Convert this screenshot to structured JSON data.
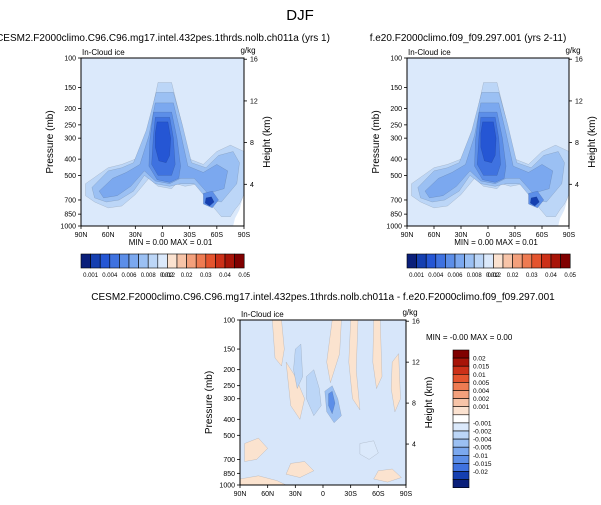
{
  "page_title": "DJF",
  "colors": {
    "blues": [
      "#0a1f7a",
      "#153fb0",
      "#2556d4",
      "#3f72e0",
      "#5c8ee8",
      "#7ba8ef",
      "#9bc0f3",
      "#bcd6f7",
      "#dbe9fb"
    ],
    "warms": [
      "#fbe2d0",
      "#f7c4a8",
      "#f3a07c",
      "#ee7b52",
      "#e4542e",
      "#cc3018",
      "#a81408",
      "#800000"
    ],
    "diff_pos": "#fbe3cf",
    "diff_neg": "#d7e6fa"
  },
  "chart_data": [
    {
      "id": "panel-left",
      "type": "contour",
      "title": "CESM2.F2000climo.C96.C96.mg17.intel.432pes.1thrds.nolb.ch011a (yrs 1)",
      "left_label": "In-Cloud ice",
      "right_label": "g/kg",
      "ylabel": "Pressure (mb)",
      "y2label": "Height (km)",
      "x_ticks": [
        "90N",
        "60N",
        "30N",
        "0",
        "30S",
        "60S",
        "90S"
      ],
      "x_range": [
        90,
        -90
      ],
      "y_ticks": [
        100,
        150,
        200,
        250,
        300,
        400,
        500,
        700,
        850,
        1000
      ],
      "y_range": [
        100,
        1000
      ],
      "y2_ticks": [
        16,
        12,
        8,
        4
      ],
      "stats": "MIN =  0.00   MAX =  0.01",
      "min": 0.0,
      "max": 0.01
    },
    {
      "id": "panel-right",
      "type": "contour",
      "title": "f.e20.F2000climo.f09_f09.297.001 (yrs 2-11)",
      "left_label": "In-Cloud ice",
      "right_label": "g/kg",
      "ylabel": "Pressure (mb)",
      "y2label": "Height (km)",
      "x_ticks": [
        "90N",
        "60N",
        "30N",
        "0",
        "30S",
        "60S",
        "90S"
      ],
      "x_range": [
        90,
        -90
      ],
      "y_ticks": [
        100,
        150,
        200,
        250,
        300,
        400,
        500,
        700,
        850,
        1000
      ],
      "y_range": [
        100,
        1000
      ],
      "y2_ticks": [
        16,
        12,
        8,
        4
      ],
      "stats": "MIN =  0.00   MAX =  0.01",
      "min": 0.0,
      "max": 0.01
    },
    {
      "id": "panel-diff",
      "type": "contour",
      "title": "CESM2.F2000climo.C96.C96.mg17.intel.432pes.1thrds.nolb.ch011a - f.e20.F2000climo.f09_f09.297.001",
      "left_label": "In-Cloud ice",
      "right_label": "g/kg",
      "ylabel": "Pressure (mb)",
      "y2label": "Height (km)",
      "x_ticks": [
        "90N",
        "60N",
        "30N",
        "0",
        "30S",
        "60S",
        "90S"
      ],
      "x_range": [
        90,
        -90
      ],
      "y_ticks": [
        100,
        150,
        200,
        250,
        300,
        400,
        500,
        700,
        850,
        1000
      ],
      "y_range": [
        100,
        1000
      ],
      "y2_ticks": [
        16,
        12,
        8,
        4
      ],
      "stats": "MIN = -0.00   MAX =  0.00",
      "min": -0.0,
      "max": 0.0
    }
  ],
  "colorbar_top": {
    "labels": [
      "0.001",
      "0.004",
      "0.006",
      "0.008",
      "0.012",
      "0.02",
      "0.02",
      "0.03",
      "0.04",
      "0.05"
    ],
    "boxes": 17
  },
  "colorbar_diff": {
    "labels": [
      "0.02",
      "0.015",
      "0.01",
      "0.005",
      "0.004",
      "0.002",
      "0.001",
      "-0.001",
      "-0.002",
      "-0.004",
      "-0.005",
      "-0.01",
      "-0.015",
      "-0.02"
    ]
  }
}
